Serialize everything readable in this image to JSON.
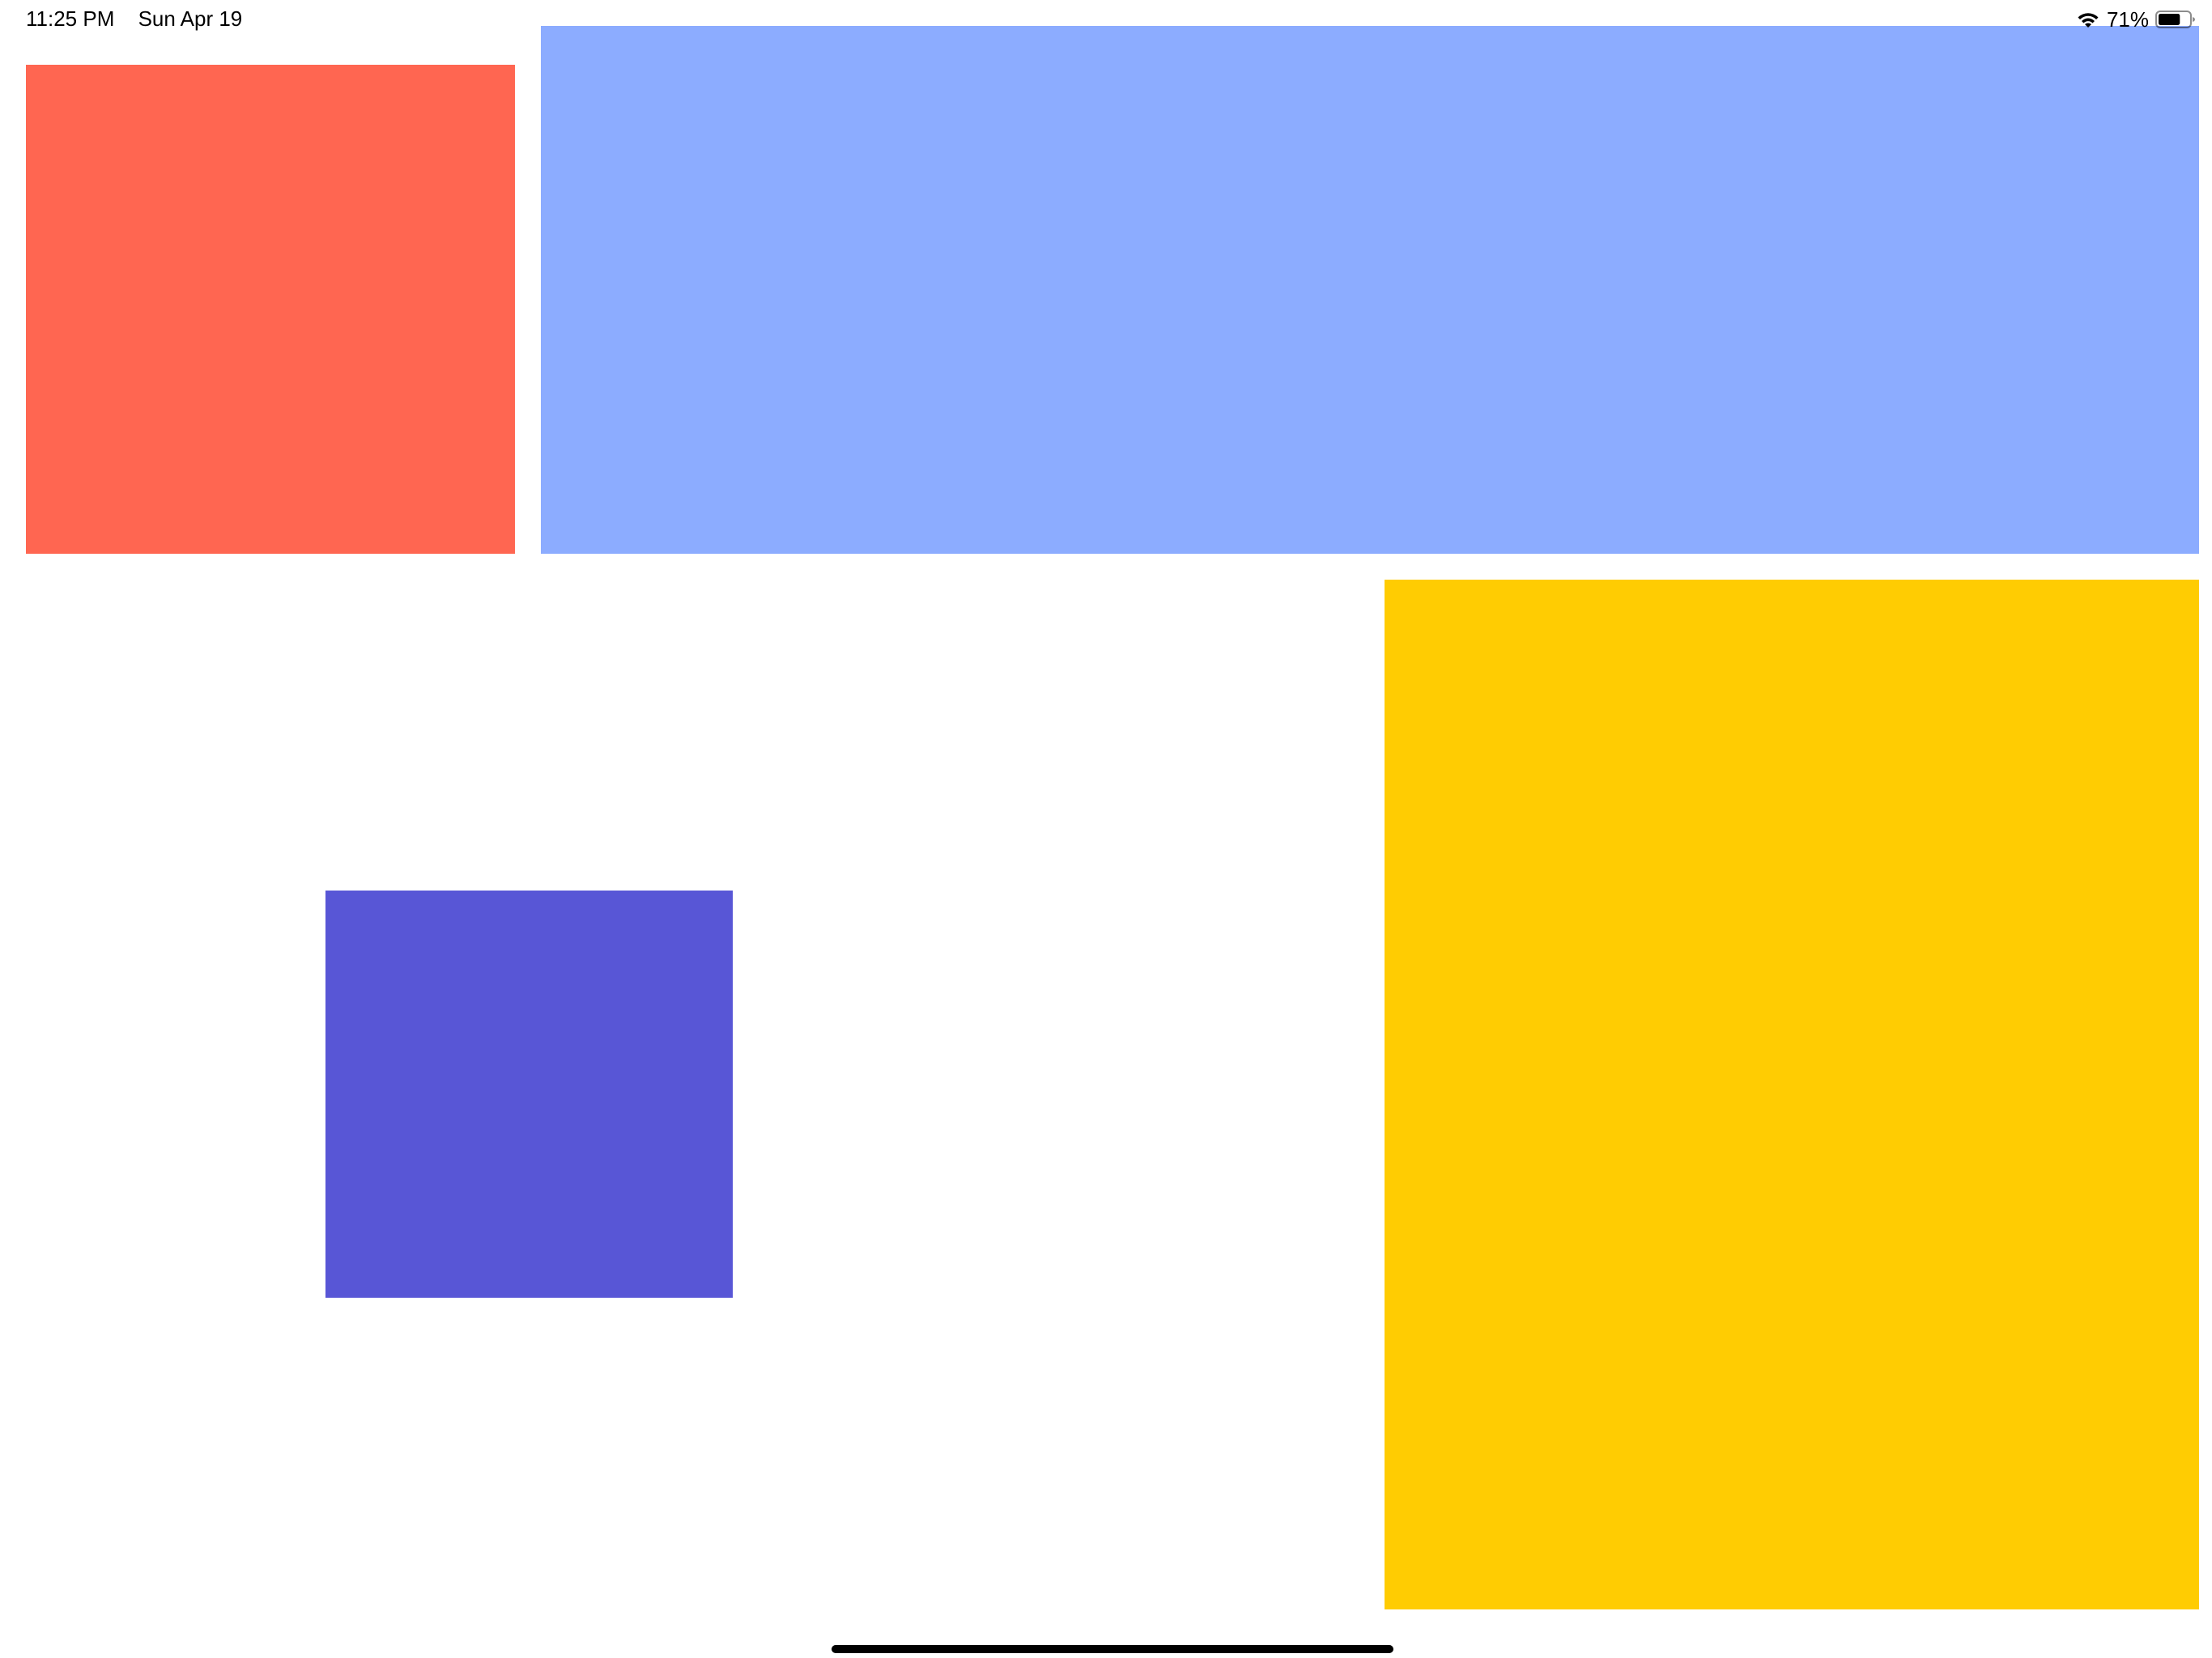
{
  "status_bar": {
    "time": "11:25 PM",
    "date": "Sun Apr 19",
    "battery_percent": "71%",
    "battery_level": 0.71,
    "wifi_icon": "wifi-icon",
    "battery_icon": "battery-icon"
  },
  "blocks": {
    "red": {
      "color": "#FF6651"
    },
    "blue": {
      "color": "#8CACFF"
    },
    "yellow": {
      "color": "#FFCC02"
    },
    "indigo": {
      "color": "#5856D6"
    }
  },
  "home_indicator": {
    "color": "#000000"
  }
}
